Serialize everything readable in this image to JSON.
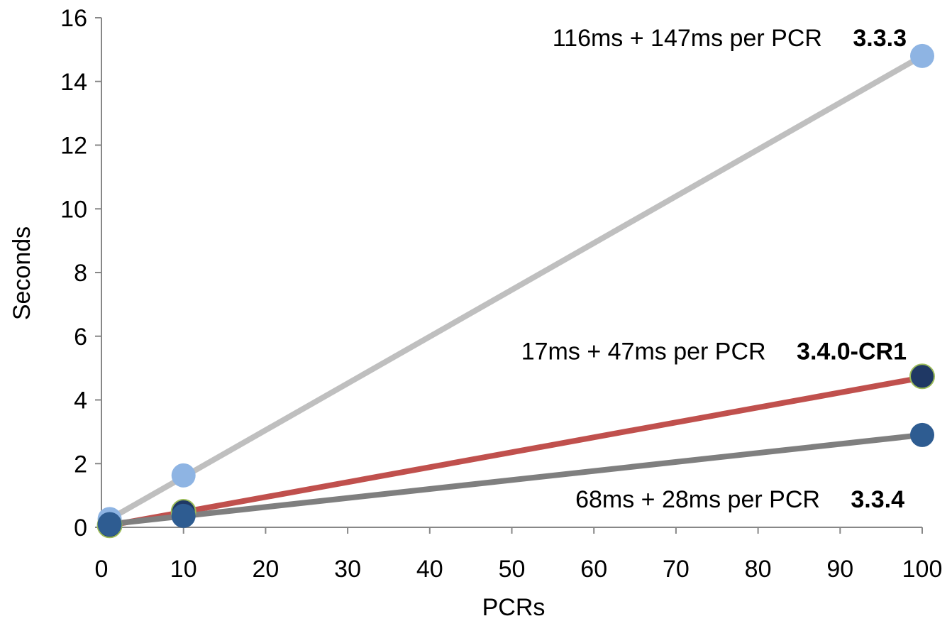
{
  "chart_data": {
    "type": "scatter",
    "xlabel": "PCRs",
    "ylabel": "Seconds",
    "xlim": [
      0,
      100
    ],
    "ylim": [
      0,
      16
    ],
    "xticks": [
      0,
      10,
      20,
      30,
      40,
      50,
      60,
      70,
      80,
      90,
      100
    ],
    "yticks": [
      0,
      2,
      4,
      6,
      8,
      10,
      12,
      14,
      16
    ],
    "grid": false,
    "legend": "none",
    "series": [
      {
        "name": "3.3.3",
        "points": [
          {
            "x": 1,
            "y": 0.26
          },
          {
            "x": 10,
            "y": 1.63
          },
          {
            "x": 100,
            "y": 14.8
          }
        ],
        "trendline": {
          "x": [
            1,
            100
          ],
          "y": [
            0.26,
            14.8
          ]
        },
        "marker_color": "#8EB4E3",
        "line_color": "#BFBFBF",
        "annotation": "116ms + 147ms per PCR"
      },
      {
        "name": "3.4.0-CR1",
        "points": [
          {
            "x": 1,
            "y": 0.06
          },
          {
            "x": 10,
            "y": 0.49
          },
          {
            "x": 100,
            "y": 4.74
          }
        ],
        "trendline": {
          "x": [
            1,
            100
          ],
          "y": [
            0.06,
            4.7
          ]
        },
        "marker_color": "#1F3864",
        "marker_stroke": "#9BBB59",
        "line_color": "#C0504D",
        "annotation": "17ms + 47ms per PCR"
      },
      {
        "name": "3.3.4",
        "points": [
          {
            "x": 1,
            "y": 0.1
          },
          {
            "x": 10,
            "y": 0.36
          },
          {
            "x": 100,
            "y": 2.9
          }
        ],
        "trendline": {
          "x": [
            1,
            100
          ],
          "y": [
            0.1,
            2.9
          ]
        },
        "marker_color": "#2E5C91",
        "line_color": "#7F7F7F",
        "annotation": "68ms + 28ms per PCR"
      }
    ]
  }
}
